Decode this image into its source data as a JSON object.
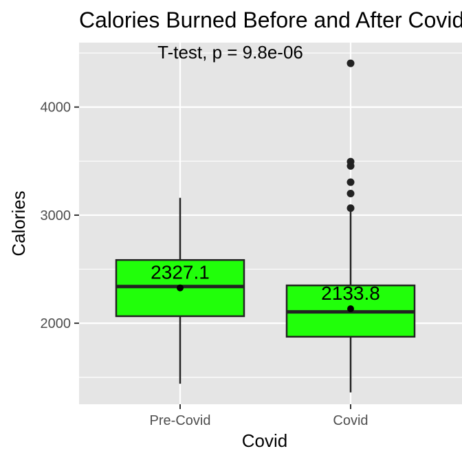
{
  "chart_data": {
    "type": "boxplot",
    "title": "Calories Burned Before and After Covid",
    "xlabel": "Covid",
    "ylabel": "Calories",
    "annotation": "T-test, p = 9.8e-06",
    "categories": [
      "Pre-Covid",
      "Covid"
    ],
    "ylim": [
      1150,
      4550
    ],
    "y_ticks": [
      2000,
      3000,
      4000
    ],
    "y_tick_labels": [
      "2000",
      "3000",
      "4000"
    ],
    "grid": true,
    "box_fill": "#21ff0a",
    "panel_background": "#e5e5e5",
    "boxes": [
      {
        "category": "Pre-Covid",
        "whisker_low": 1440,
        "q1": 2065,
        "median": 2340,
        "q3": 2585,
        "whisker_high": 3160,
        "mean": 2327.1,
        "mean_label": "2327.1",
        "outliers": []
      },
      {
        "category": "Covid",
        "whisker_low": 1360,
        "q1": 1875,
        "median": 2105,
        "q3": 2350,
        "whisker_high": 3050,
        "mean": 2133.8,
        "mean_label": "2133.8",
        "outliers": [
          3065,
          3200,
          3305,
          3455,
          3495,
          4405
        ]
      }
    ]
  }
}
